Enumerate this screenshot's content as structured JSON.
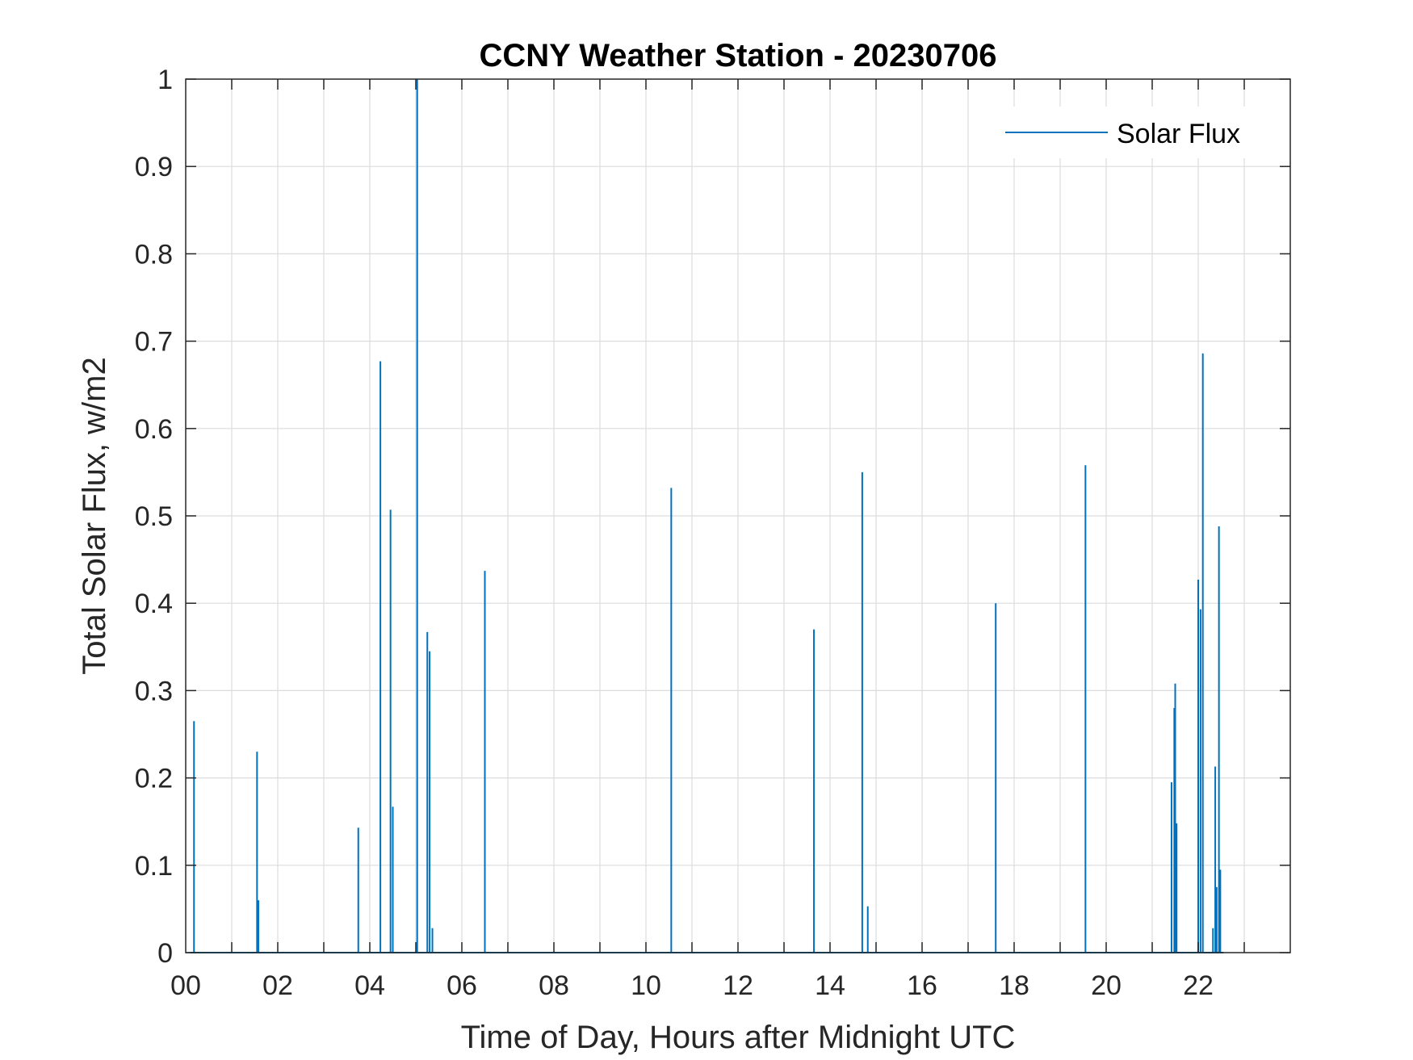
{
  "chart_data": {
    "type": "line",
    "title": "CCNY Weather Station - 20230706",
    "xlabel": "Time of Day, Hours after Midnight UTC",
    "ylabel": "Total Solar Flux, w/m2",
    "xlim": [
      0,
      24
    ],
    "ylim": [
      0,
      1
    ],
    "xticks": [
      0,
      2,
      4,
      6,
      8,
      10,
      12,
      14,
      16,
      18,
      20,
      22
    ],
    "xtick_labels": [
      "00",
      "02",
      "04",
      "06",
      "08",
      "10",
      "12",
      "14",
      "16",
      "18",
      "20",
      "22"
    ],
    "yticks": [
      0,
      0.1,
      0.2,
      0.3,
      0.4,
      0.5,
      0.6,
      0.7,
      0.8,
      0.9,
      1
    ],
    "ytick_labels": [
      "0",
      "0.1",
      "0.2",
      "0.3",
      "0.4",
      "0.5",
      "0.6",
      "0.7",
      "0.8",
      "0.9",
      "1"
    ],
    "grid": true,
    "legend_position": "top-right",
    "series": [
      {
        "name": "Solar Flux",
        "color": "#0072BD",
        "spikes": [
          [
            0.18,
            0.265
          ],
          [
            1.55,
            0.23
          ],
          [
            1.58,
            0.06
          ],
          [
            3.75,
            0.143
          ],
          [
            4.23,
            0.677
          ],
          [
            4.45,
            0.507
          ],
          [
            4.5,
            0.167
          ],
          [
            5.03,
            1.0
          ],
          [
            5.25,
            0.367
          ],
          [
            5.3,
            0.345
          ],
          [
            5.36,
            0.028
          ],
          [
            6.5,
            0.437
          ],
          [
            10.55,
            0.532
          ],
          [
            13.65,
            0.37
          ],
          [
            14.7,
            0.55
          ],
          [
            14.82,
            0.053
          ],
          [
            17.6,
            0.4
          ],
          [
            19.55,
            0.558
          ],
          [
            21.42,
            0.195
          ],
          [
            21.48,
            0.28
          ],
          [
            21.5,
            0.308
          ],
          [
            21.53,
            0.148
          ],
          [
            22.0,
            0.427
          ],
          [
            22.05,
            0.393
          ],
          [
            22.1,
            0.686
          ],
          [
            22.32,
            0.028
          ],
          [
            22.37,
            0.213
          ],
          [
            22.4,
            0.075
          ],
          [
            22.45,
            0.488
          ],
          [
            22.48,
            0.095
          ]
        ]
      }
    ]
  }
}
